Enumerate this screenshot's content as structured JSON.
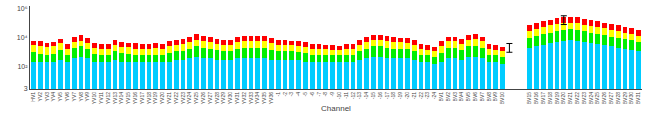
{
  "chart_data": {
    "type": "bar",
    "stacked": true,
    "log": "y",
    "grid": false,
    "xlabel": "Channel",
    "categories": [
      "HV1",
      "YV2",
      "YV3",
      "YV4",
      "YV5",
      "YV6",
      "YV7",
      "YV8",
      "YV9",
      "YV10",
      "YV11",
      "YV12",
      "YV13",
      "YV14",
      "YV15",
      "YV16",
      "YV17",
      "YV18",
      "YV19",
      "YV20",
      "YV21",
      "YV22",
      "YV23",
      "YV24",
      "YV25",
      "YV26",
      "YV27",
      "YV28",
      "YV29",
      "YV30",
      "YV31",
      "YV32",
      "YV33",
      "YV34",
      "YV35",
      "YV36",
      "-1",
      "-2",
      "-3",
      "-4",
      "-5",
      "-6",
      "-7",
      "-8",
      "-9",
      "-10",
      "-11",
      "-12",
      "-13",
      "-14",
      "-15",
      "-16",
      "-17",
      "-18",
      "-19",
      "-20",
      "-21",
      "-22",
      "-23",
      "-24",
      "BV1",
      "BV2",
      "BV3",
      "BV4",
      "BV5",
      "BV6",
      "BV7",
      "BV8",
      "BV9",
      "BV10",
      null,
      null,
      null,
      "BV15",
      "BV16",
      "BV17",
      "BV18",
      "BV19",
      "BV20",
      "BV21",
      "BV22",
      "BV23",
      "BV24",
      "BV25",
      "BV26",
      "BV27",
      "BV28",
      "BV29",
      "BV30",
      "BV31"
    ],
    "series": [
      {
        "color": "#00ccff",
        "values": [
          200,
          200,
          200,
          200,
          300,
          200,
          400,
          500,
          400,
          200,
          200,
          200,
          300,
          200,
          200,
          200,
          200,
          200,
          200,
          200,
          200,
          300,
          300,
          400,
          500,
          400,
          400,
          300,
          300,
          300,
          400,
          400,
          400,
          400,
          400,
          300,
          300,
          300,
          300,
          300,
          200,
          200,
          200,
          200,
          200,
          200,
          200,
          200,
          300,
          400,
          500,
          500,
          400,
          400,
          400,
          400,
          300,
          200,
          200,
          150,
          200,
          400,
          400,
          300,
          500,
          500,
          400,
          200,
          200,
          150,
          null,
          null,
          null,
          2000,
          2500,
          3000,
          4000,
          5000,
          6000,
          7000,
          6000,
          5000,
          4000,
          3500,
          3000,
          2500,
          2000,
          1800,
          1500,
          1200
        ]
      },
      {
        "color": "#00ee00",
        "values": [
          800,
          600,
          500,
          600,
          1200,
          500,
          1600,
          2000,
          1400,
          600,
          500,
          500,
          900,
          700,
          600,
          500,
          500,
          500,
          500,
          500,
          700,
          900,
          900,
          1400,
          2000,
          1600,
          1400,
          1100,
          900,
          900,
          1400,
          1600,
          1600,
          1600,
          1600,
          1100,
          900,
          900,
          900,
          800,
          700,
          500,
          500,
          500,
          400,
          400,
          500,
          500,
          900,
          1400,
          2000,
          2000,
          1600,
          1400,
          1400,
          1200,
          900,
          500,
          400,
          350,
          700,
          1600,
          1600,
          1100,
          2000,
          2300,
          1600,
          500,
          400,
          350,
          null,
          null,
          null,
          8000,
          11500,
          15000,
          18000,
          23000,
          29000,
          33000,
          29000,
          23000,
          18000,
          14500,
          12000,
          9500,
          8000,
          6200,
          5000,
          3800
        ]
      },
      {
        "color": "#ffff00",
        "values": [
          2000,
          1700,
          1500,
          1700,
          2500,
          1100,
          3000,
          3500,
          2700,
          1200,
          1100,
          1100,
          1800,
          1500,
          1400,
          1100,
          1100,
          1100,
          1300,
          1100,
          1600,
          2000,
          2300,
          3200,
          4500,
          3500,
          3200,
          2400,
          2000,
          2000,
          3200,
          3500,
          3500,
          3500,
          3500,
          2600,
          2000,
          2000,
          1800,
          1700,
          1500,
          1100,
          1100,
          1000,
          900,
          800,
          1100,
          1100,
          1800,
          3200,
          4500,
          4500,
          3500,
          3200,
          3000,
          2600,
          2000,
          1100,
          900,
          700,
          1600,
          3500,
          3500,
          2400,
          4500,
          5200,
          3500,
          1100,
          900,
          700,
          null,
          null,
          null,
          20000,
          28000,
          37000,
          48000,
          57000,
          65000,
          70000,
          65000,
          52000,
          43000,
          37000,
          30000,
          23000,
          18000,
          14000,
          11500,
          9000
        ]
      },
      {
        "color": "#ff0000",
        "values": [
          3000,
          3000,
          2300,
          2500,
          4000,
          1700,
          7000,
          9000,
          5500,
          2000,
          1700,
          2000,
          3500,
          2600,
          2300,
          2200,
          2000,
          1700,
          2000,
          2000,
          3000,
          3800,
          4500,
          7000,
          11000,
          8500,
          6000,
          4700,
          3800,
          3800,
          7000,
          7500,
          7500,
          7500,
          7500,
          5000,
          3800,
          3300,
          3000,
          2700,
          2600,
          2000,
          1700,
          1500,
          1500,
          1400,
          1700,
          2000,
          4000,
          6000,
          8000,
          9000,
          7500,
          6000,
          5200,
          4800,
          3800,
          2000,
          1500,
          1200,
          3000,
          6500,
          5500,
          4200,
          9000,
          10000,
          6500,
          2000,
          1500,
          1200,
          null,
          null,
          null,
          40000,
          58000,
          75000,
          100000,
          125000,
          150000,
          160000,
          150000,
          120000,
          95000,
          75000,
          65000,
          55000,
          42000,
          33000,
          27000,
          21000
        ]
      }
    ],
    "error_bars": [
      {
        "x": 70,
        "y": 2500,
        "yerr_lo": 1500,
        "yerr_hi": 1500,
        "color": "#000000"
      },
      {
        "x": 78,
        "y": 200000,
        "yerr_lo": 120000,
        "yerr_hi": 120000,
        "color": "#000000"
      }
    ],
    "ylim": [
      3,
      1500000
    ],
    "yticks": [
      3,
      {
        "value": 100,
        "label": "10²"
      },
      {
        "value": 10000,
        "label": "10⁴"
      },
      {
        "value": 1000000,
        "label": "10⁶"
      }
    ]
  }
}
